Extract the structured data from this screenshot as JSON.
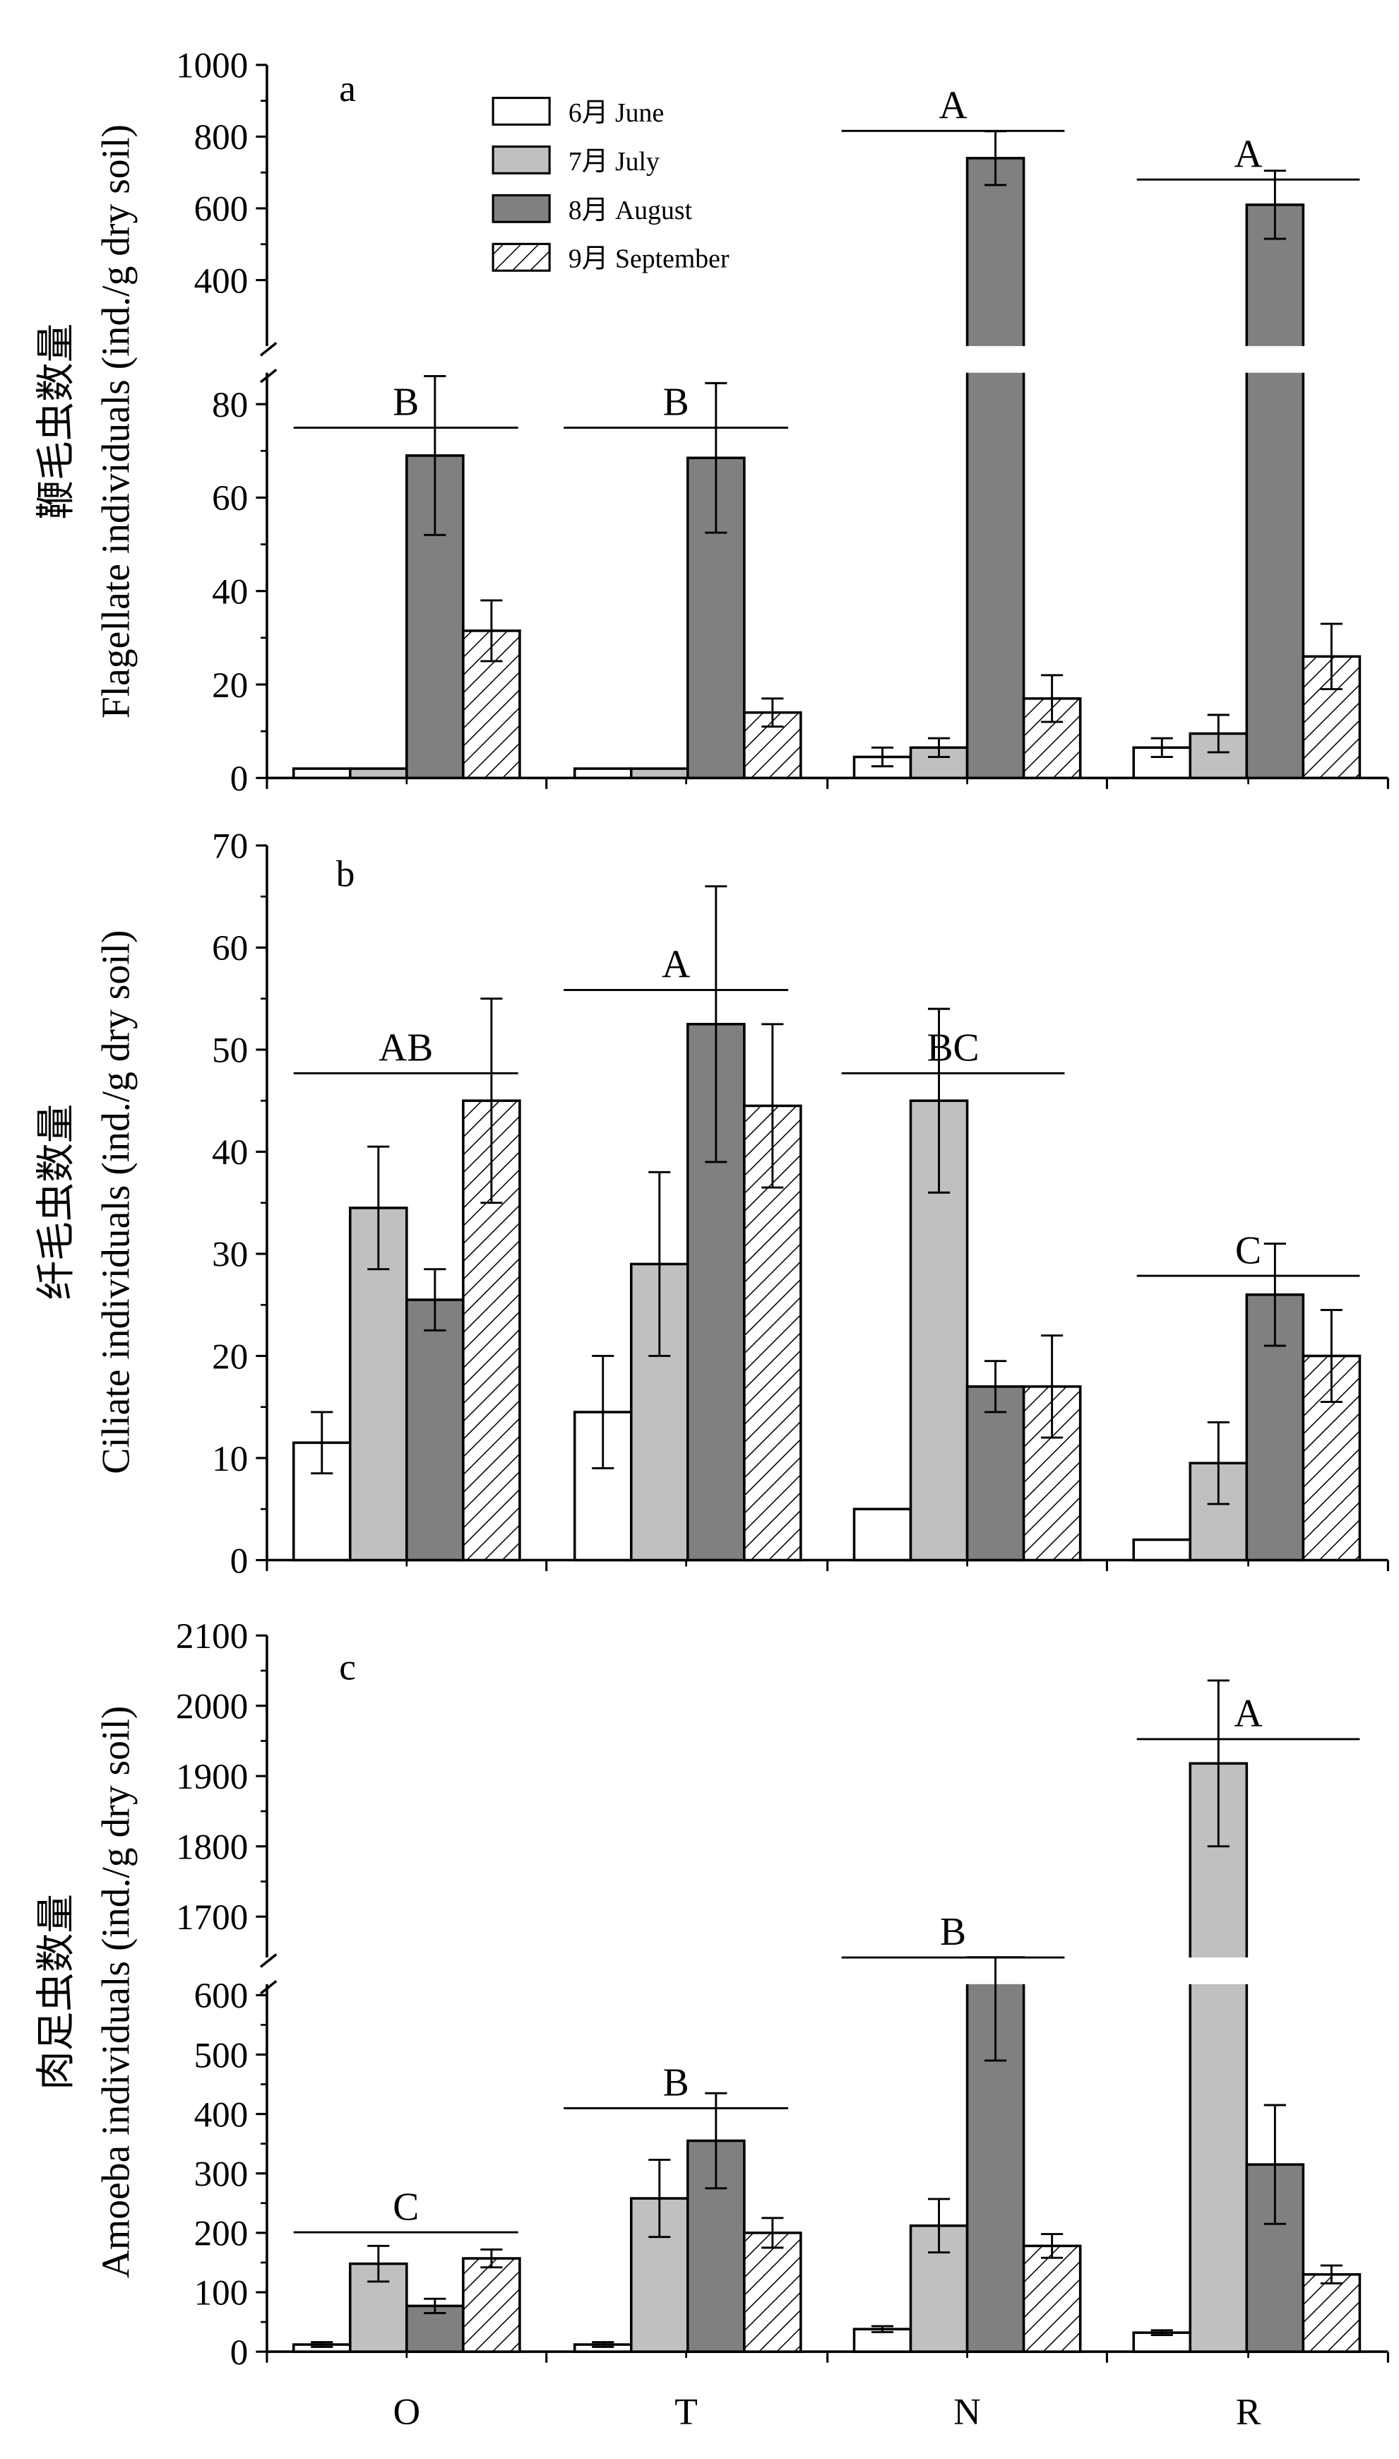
{
  "legend": [
    {
      "label": "6月  June",
      "fill": "#ffffff",
      "pattern": "none"
    },
    {
      "label": "7月  July",
      "fill": "#c0c0c0",
      "pattern": "none"
    },
    {
      "label": "8月  August",
      "fill": "#808080",
      "pattern": "none"
    },
    {
      "label": "9月  September",
      "fill": "#ffffff",
      "pattern": "hatch"
    }
  ],
  "chart_data": [
    {
      "type": "bar",
      "panel": "a",
      "categories": [
        "O",
        "T",
        "N",
        "R"
      ],
      "ylabel_cn": "鞭毛虫数量",
      "ylabel_en": "Flagellate individuals (ind./g dry soil)",
      "axis_break": true,
      "lower_ticks": [
        0,
        20,
        40,
        60,
        80
      ],
      "upper_ticks": [
        400,
        600,
        800,
        1000
      ],
      "series": [
        {
          "name": "6月  June",
          "values": [
            2,
            2,
            4.5,
            6.5
          ],
          "errors": [
            0,
            0,
            2,
            2
          ]
        },
        {
          "name": "7月  July",
          "values": [
            2,
            2,
            6.5,
            9.5
          ],
          "errors": [
            0,
            0,
            2,
            4
          ]
        },
        {
          "name": "8月  August",
          "values": [
            69,
            68.5,
            740,
            610
          ],
          "errors": [
            17,
            16,
            75,
            95
          ]
        },
        {
          "name": "9月  September",
          "values": [
            31.5,
            14,
            17,
            26
          ],
          "errors": [
            6.5,
            3,
            5,
            7
          ]
        }
      ],
      "group_letters": [
        "B",
        "B",
        "A",
        "A"
      ]
    },
    {
      "type": "bar",
      "panel": "b",
      "categories": [
        "O",
        "T",
        "N",
        "R"
      ],
      "ylabel_cn": "纤毛虫数量",
      "ylabel_en": "Ciliate individuals (ind./g dry soil)",
      "axis_break": false,
      "ticks": [
        0,
        10,
        20,
        30,
        40,
        50,
        60,
        70
      ],
      "series": [
        {
          "name": "6月  June",
          "values": [
            11.5,
            14.5,
            5,
            2
          ],
          "errors": [
            3,
            5.5,
            0,
            0
          ]
        },
        {
          "name": "7月  July",
          "values": [
            34.5,
            29,
            45,
            9.5
          ],
          "errors": [
            6,
            9,
            9,
            4
          ]
        },
        {
          "name": "8月  August",
          "values": [
            25.5,
            52.5,
            17,
            26
          ],
          "errors": [
            3,
            13.5,
            2.5,
            5
          ]
        },
        {
          "name": "9月  September",
          "values": [
            45,
            44.5,
            17,
            20
          ],
          "errors": [
            10,
            8,
            5,
            4.5
          ]
        }
      ],
      "group_letters": [
        "AB",
        "A",
        "BC",
        "C"
      ]
    },
    {
      "type": "bar",
      "panel": "c",
      "categories": [
        "O",
        "T",
        "N",
        "R"
      ],
      "ylabel_cn": "肉足虫数量",
      "ylabel_en": "Amoeba individuals (ind./g dry soil)",
      "axis_break": true,
      "lower_ticks": [
        0,
        100,
        200,
        300,
        400,
        500,
        600
      ],
      "upper_ticks": [
        1700,
        1800,
        1900,
        2000,
        2100
      ],
      "series": [
        {
          "name": "6月  June",
          "values": [
            12,
            12,
            38,
            32
          ],
          "errors": [
            4,
            4,
            5,
            4
          ]
        },
        {
          "name": "7月  July",
          "values": [
            148,
            258,
            212,
            1918
          ],
          "errors": [
            30,
            65,
            45,
            118
          ]
        },
        {
          "name": "8月  August",
          "values": [
            77,
            355,
            625,
            315
          ],
          "errors": [
            12,
            80,
            135,
            100
          ]
        },
        {
          "name": "9月  September",
          "values": [
            157,
            200,
            178,
            130
          ],
          "errors": [
            15,
            25,
            20,
            15
          ]
        }
      ],
      "group_letters": [
        "C",
        "B",
        "B",
        "A"
      ]
    }
  ]
}
